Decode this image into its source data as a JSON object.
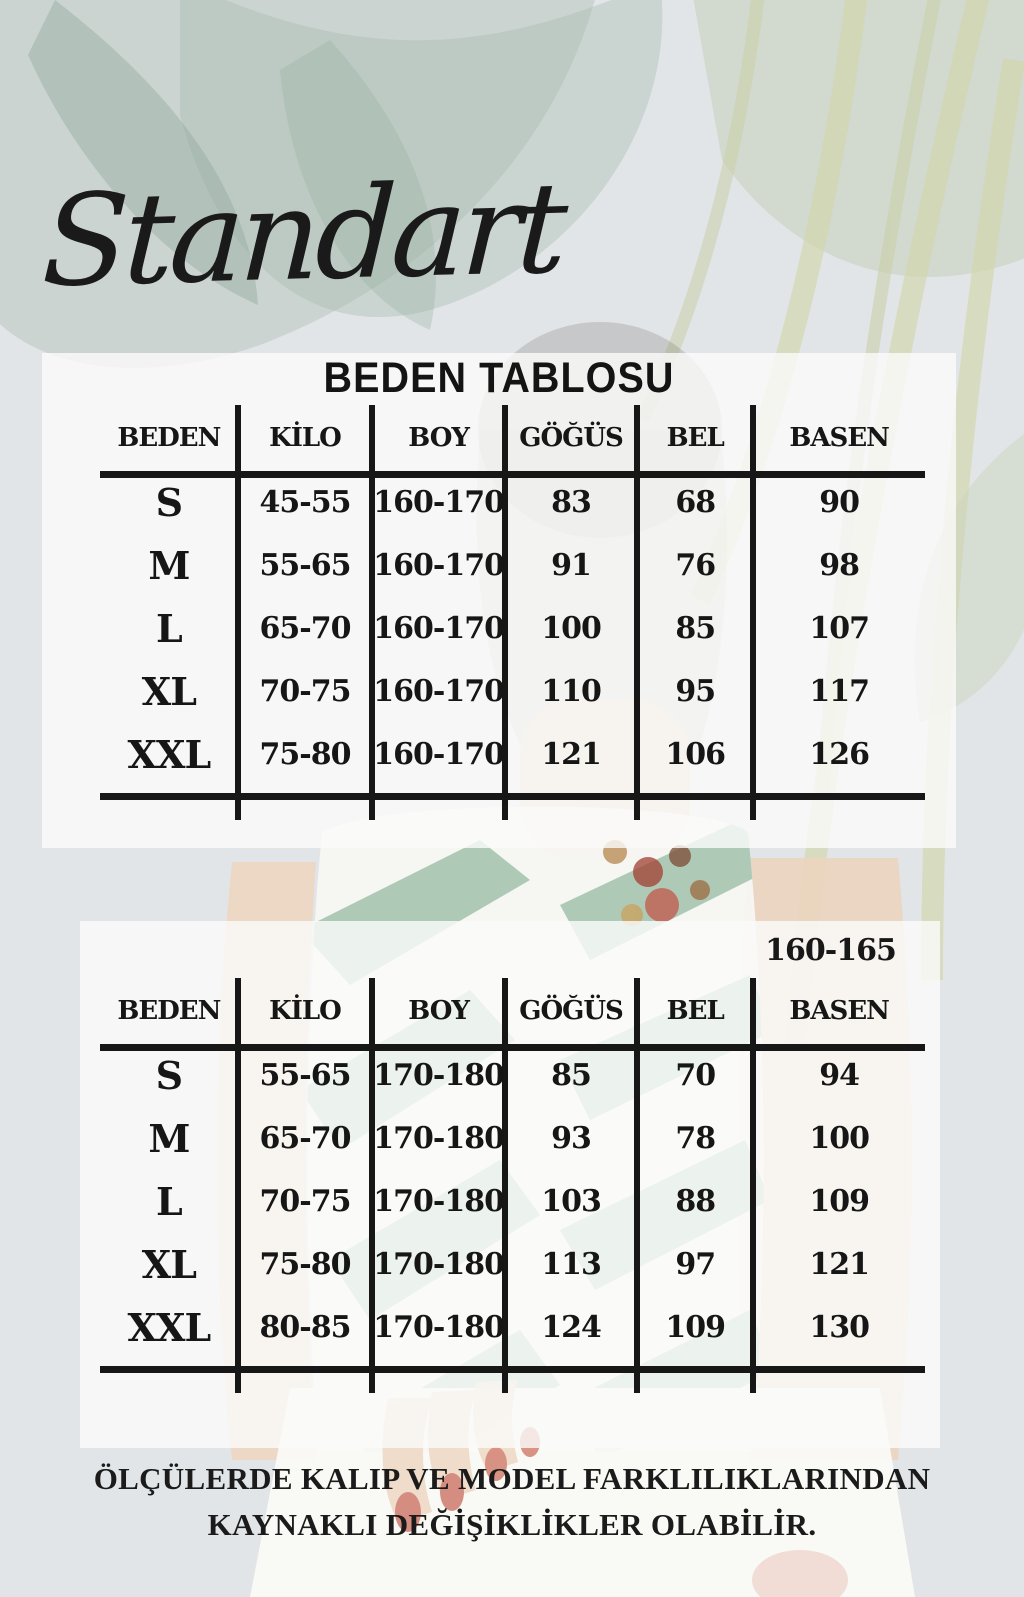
{
  "page": {
    "brand_title": "Standart",
    "table_title": "BEDEN TABLOSU",
    "disclaimer_line1": "ÖLÇÜLERDE KALIP VE MODEL FARKLILIKLARINDAN",
    "disclaimer_line2": "KAYNAKLI DEĞİŞİKLİKLER OLABİLİR.",
    "colors": {
      "text": "#1c1c1c",
      "panel": "rgba(250,250,249,0.82)",
      "background": "#e1e5e8",
      "stripe_green": "#7fae90",
      "nail_red": "#d07a6c"
    }
  },
  "tables": [
    {
      "note": "",
      "columns": [
        "BEDEN",
        "KİLO",
        "BOY",
        "GÖĞÜS",
        "BEL",
        "BASEN"
      ],
      "rows": [
        [
          "S",
          "45-55",
          "160-170",
          "83",
          "68",
          "90"
        ],
        [
          "M",
          "55-65",
          "160-170",
          "91",
          "76",
          "98"
        ],
        [
          "L",
          "65-70",
          "160-170",
          "100",
          "85",
          "107"
        ],
        [
          "XL",
          "70-75",
          "160-170",
          "110",
          "95",
          "117"
        ],
        [
          "XXL",
          "75-80",
          "160-170",
          "121",
          "106",
          "126"
        ]
      ]
    },
    {
      "note": "160-165",
      "columns": [
        "BEDEN",
        "KİLO",
        "BOY",
        "GÖĞÜS",
        "BEL",
        "BASEN"
      ],
      "rows": [
        [
          "S",
          "55-65",
          "170-180",
          "85",
          "70",
          "94"
        ],
        [
          "M",
          "65-70",
          "170-180",
          "93",
          "78",
          "100"
        ],
        [
          "L",
          "70-75",
          "170-180",
          "103",
          "88",
          "109"
        ],
        [
          "XL",
          "75-80",
          "170-180",
          "113",
          "97",
          "121"
        ],
        [
          "XXL",
          "80-85",
          "170-180",
          "124",
          "109",
          "130"
        ]
      ]
    }
  ]
}
